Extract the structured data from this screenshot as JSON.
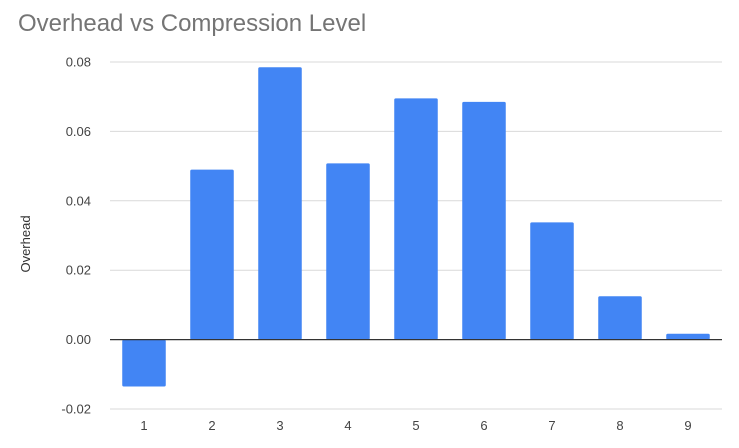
{
  "chart_data": {
    "type": "bar",
    "title": "Overhead vs Compression Level",
    "xlabel": "",
    "ylabel": "Overhead",
    "categories": [
      "1",
      "2",
      "3",
      "4",
      "5",
      "6",
      "7",
      "8",
      "9"
    ],
    "values": [
      -0.0135,
      0.049,
      0.0785,
      0.0508,
      0.0695,
      0.0685,
      0.0338,
      0.0125,
      0.0017
    ],
    "ylim": [
      -0.02,
      0.08
    ],
    "yticks": [
      "-0.02",
      "0.00",
      "0.02",
      "0.04",
      "0.06",
      "0.08"
    ],
    "grid": true,
    "legend": "none",
    "colors": {
      "bar": "#4285f4",
      "grid": "#d9d9d9",
      "zero_line": "#333333",
      "title": "#757575"
    }
  }
}
